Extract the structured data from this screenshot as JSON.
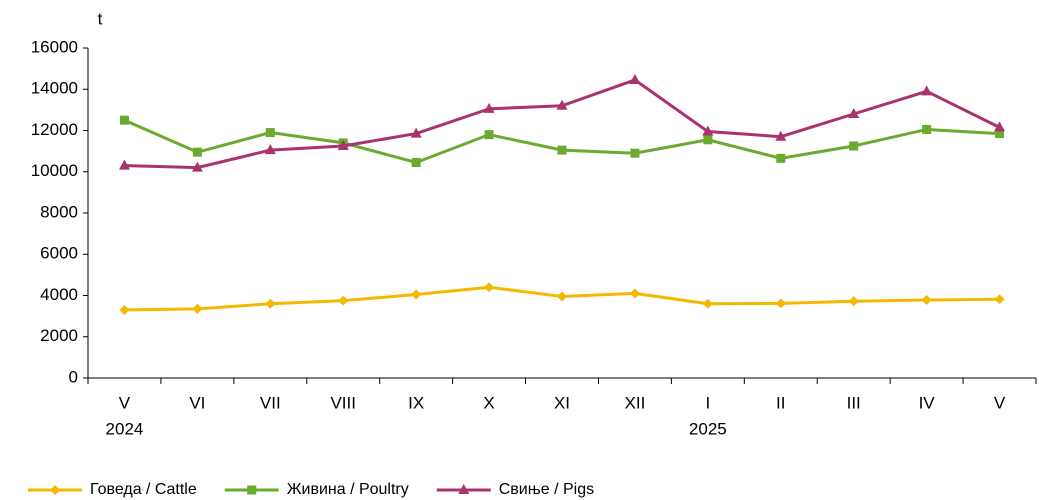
{
  "chart_data": {
    "type": "line",
    "y_label": "t",
    "categories": [
      "V",
      "VI",
      "VII",
      "VIII",
      "IX",
      "X",
      "XI",
      "XII",
      "I",
      "II",
      "III",
      "IV",
      "V"
    ],
    "years": [
      "2024",
      null,
      null,
      null,
      null,
      null,
      null,
      null,
      "2025",
      null,
      null,
      null,
      null
    ],
    "series": [
      {
        "name": "Говеда / Cattle",
        "color": "#f5b800",
        "marker": "diamond",
        "values": [
          3300,
          3350,
          3600,
          3750,
          4050,
          4400,
          3950,
          4100,
          3600,
          3620,
          3720,
          3780,
          3820
        ]
      },
      {
        "name": "Живина / Poultry",
        "color": "#6aaa2e",
        "marker": "square",
        "values": [
          12500,
          10950,
          11900,
          11400,
          10450,
          11800,
          11050,
          10900,
          11550,
          10650,
          11250,
          12050,
          11850
        ]
      },
      {
        "name": "Свиње / Pigs",
        "color": "#a8336e",
        "marker": "triangle",
        "values": [
          10300,
          10200,
          11050,
          11250,
          11850,
          13050,
          13200,
          14450,
          11950,
          11700,
          12800,
          13900,
          12150
        ]
      }
    ],
    "ylim": [
      0,
      16000
    ],
    "yticks": [
      0,
      2000,
      4000,
      6000,
      8000,
      10000,
      12000,
      14000,
      16000
    ],
    "grid": false,
    "legend": "bottom"
  }
}
